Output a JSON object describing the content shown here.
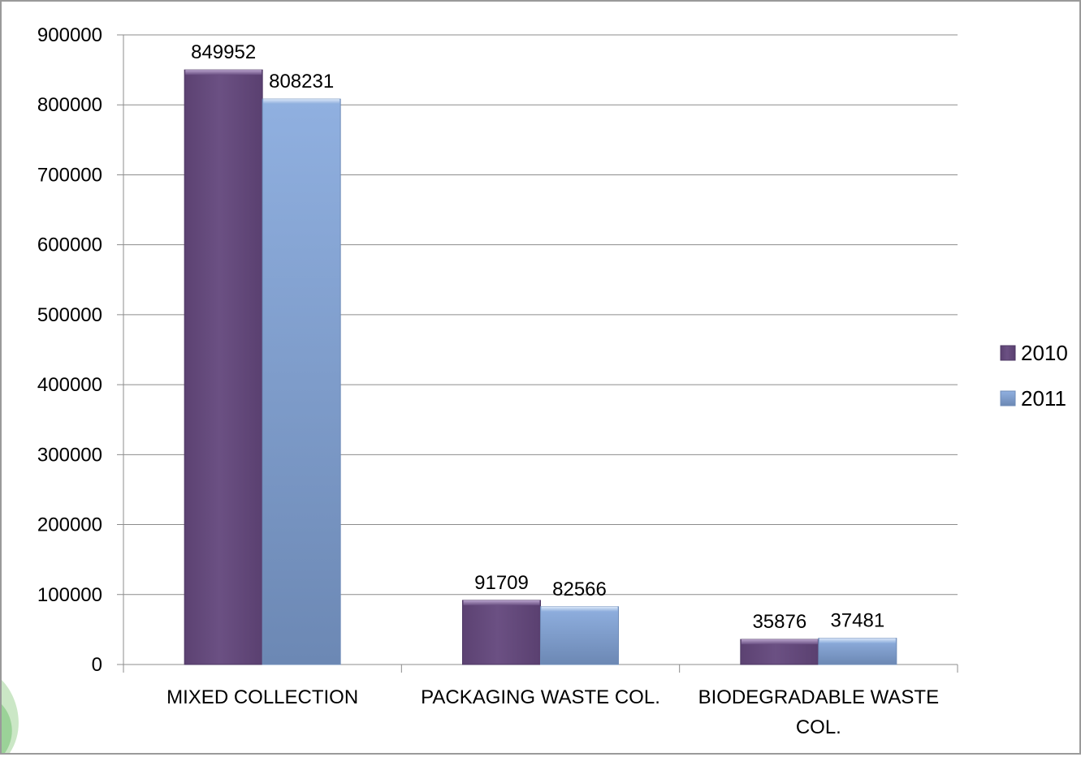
{
  "chart_data": {
    "type": "bar",
    "title": "",
    "xlabel": "",
    "ylabel": "",
    "categories": [
      [
        "MIXED COLLECTION"
      ],
      [
        "PACKAGING WASTE COL."
      ],
      [
        "BIODEGRADABLE WASTE",
        "COL."
      ]
    ],
    "series": [
      {
        "name": "2010",
        "values": [
          849952,
          91709,
          35876
        ],
        "color": "#6a4f80"
      },
      {
        "name": "2011",
        "values": [
          808231,
          82566,
          37481
        ],
        "color": "#7f9fcf"
      }
    ],
    "ylim": [
      0,
      900000
    ],
    "yticks": [
      "0",
      "100000",
      "200000",
      "300000",
      "400000",
      "500000",
      "600000",
      "700000",
      "800000",
      "900000"
    ],
    "data_labels": [
      [
        "849952",
        "91709",
        "35876"
      ],
      [
        "808231",
        "82566",
        "37481"
      ]
    ],
    "grid": true,
    "legend_position": "right"
  }
}
